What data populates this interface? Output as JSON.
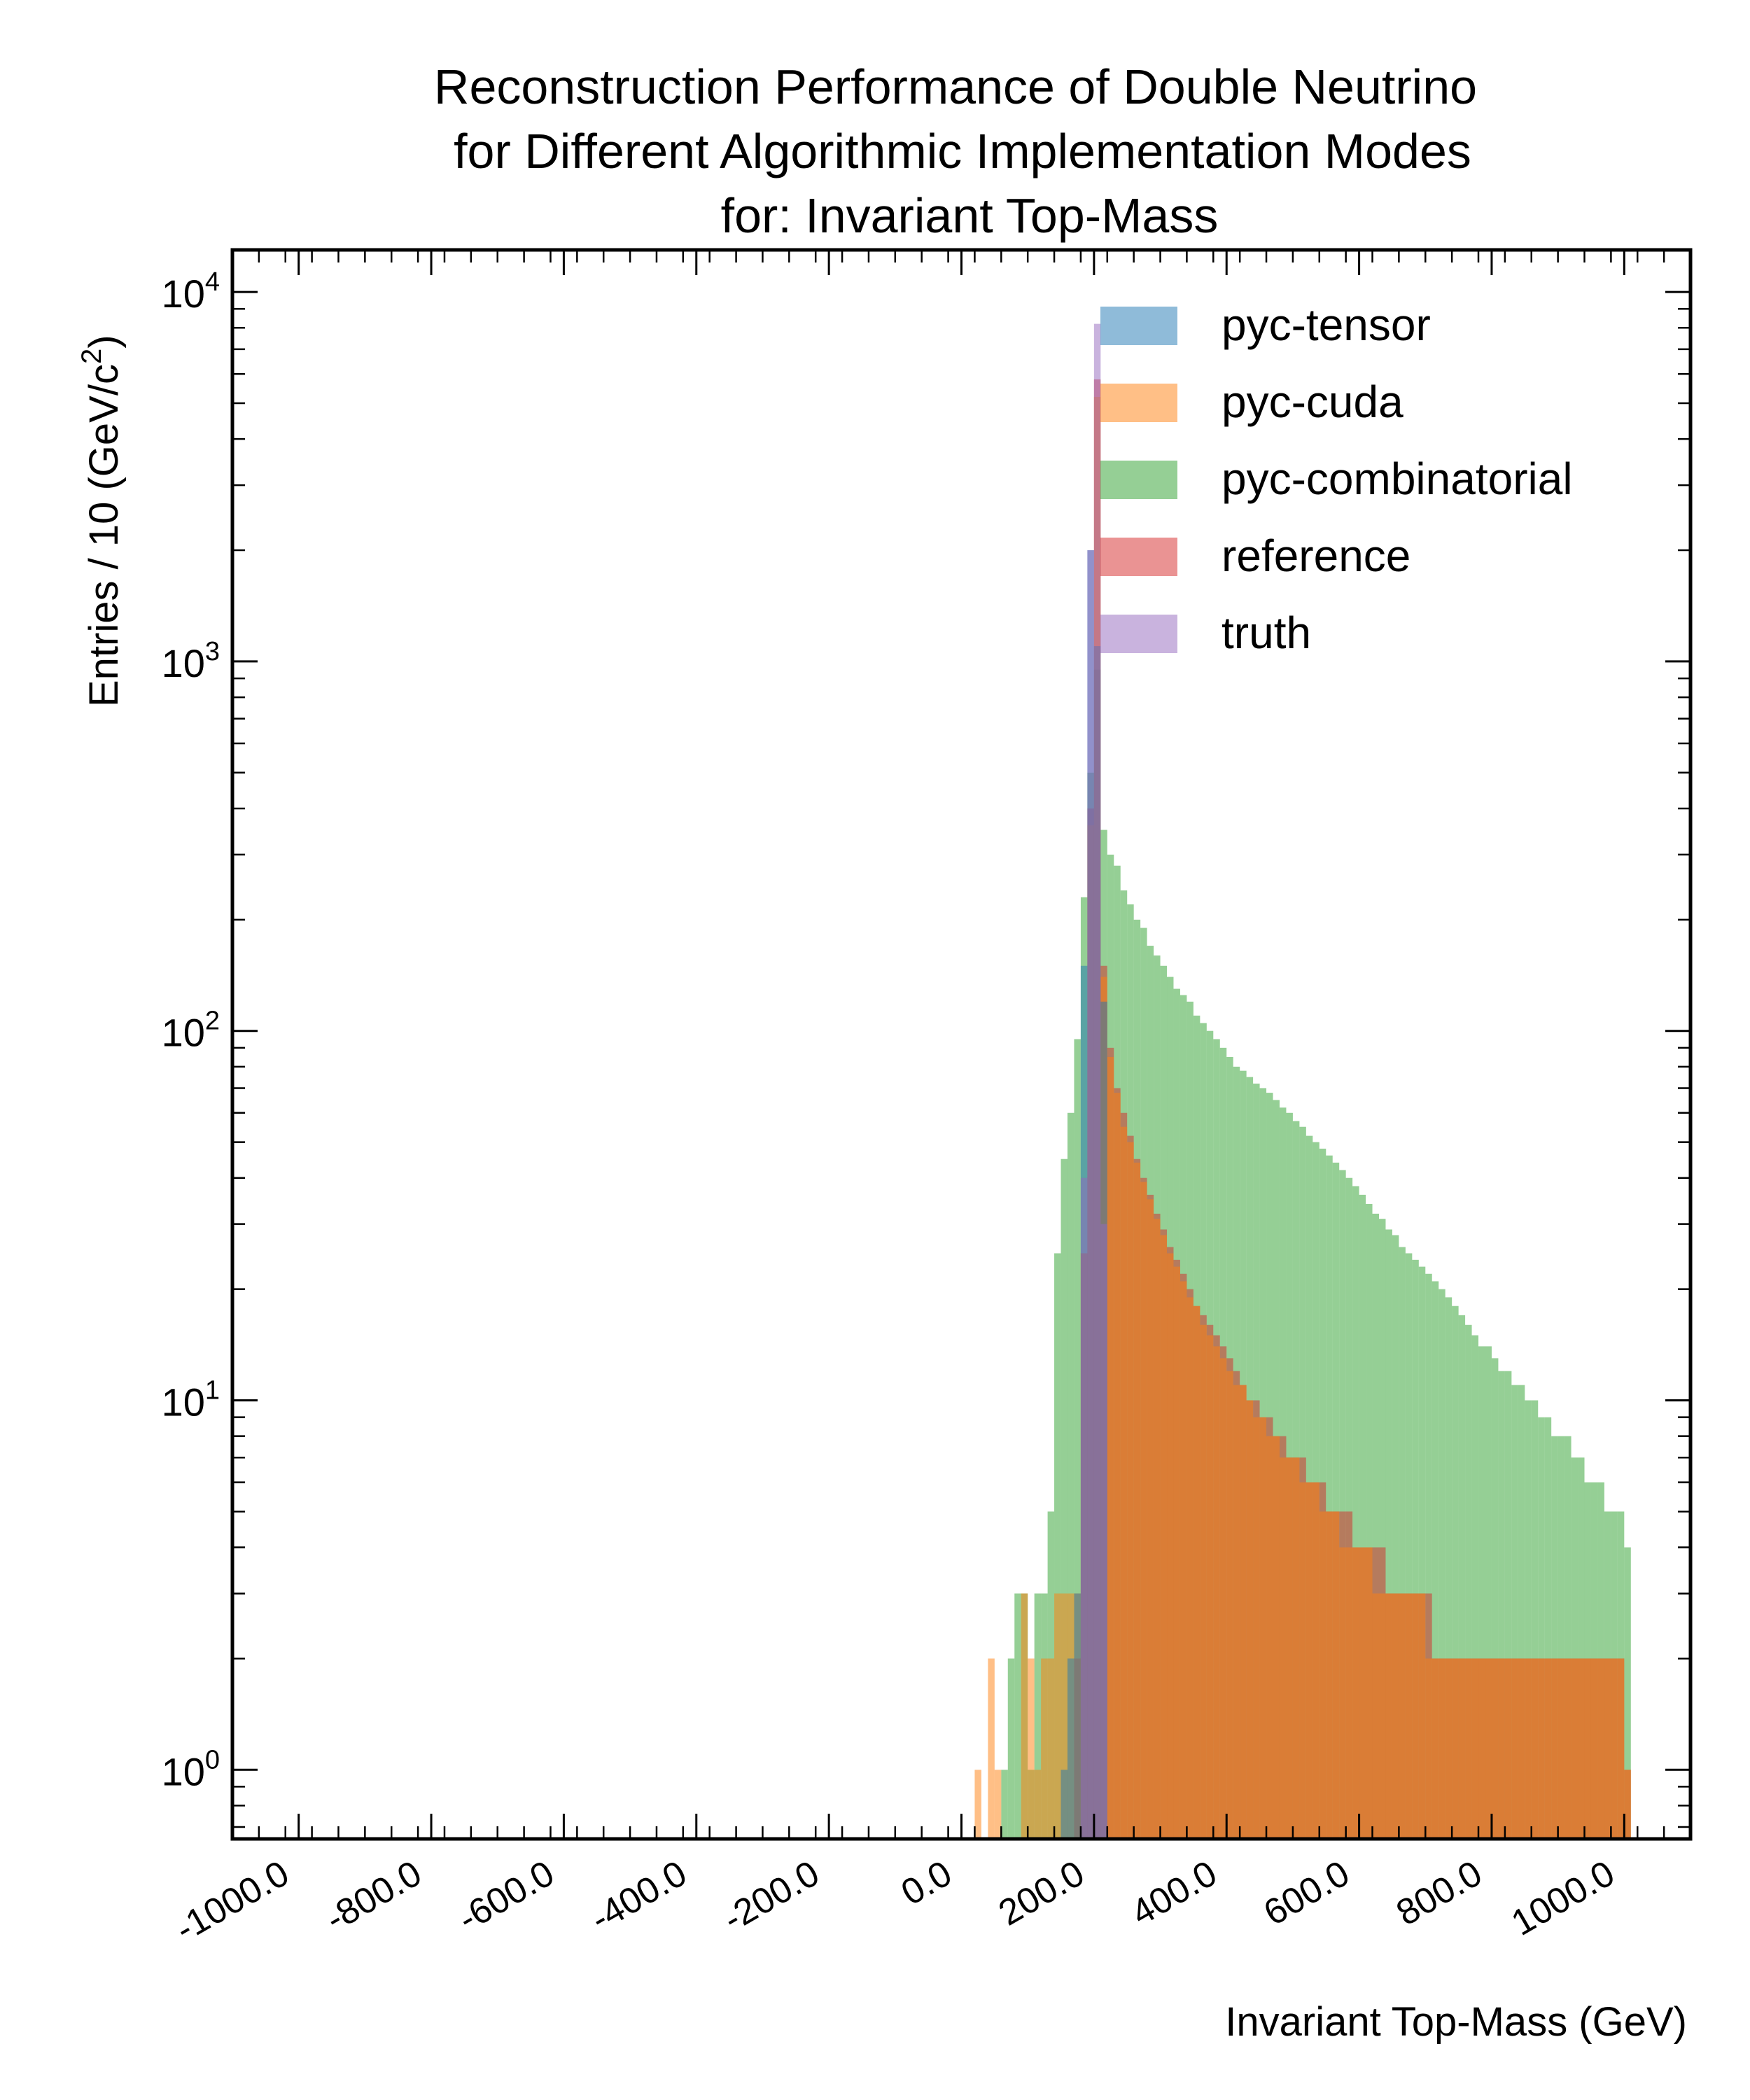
{
  "chart_data": {
    "type": "bar",
    "subtype": "overlaid step histogram",
    "title": [
      "Reconstruction Performance of Double Neutrino",
      "for Different Algorithmic Implementation Modes",
      "for: Invariant Top-Mass"
    ],
    "xlabel": "Invariant Top-Mass (GeV)",
    "ylabel": "Entries  / 10 (GeV/c",
    "ylabel_superscript": "2",
    "ylabel_suffix": ")",
    "x_ticks": [
      "-1000.0",
      "-800.0",
      "-600.0",
      "-400.0",
      "-200.0",
      "0.0",
      "200.0",
      "400.0",
      "600.0",
      "800.0",
      "1000.0"
    ],
    "x_tick_values": [
      -1000,
      -800,
      -600,
      -400,
      -200,
      0,
      200,
      400,
      600,
      800,
      1000
    ],
    "y_ticks": [
      {
        "base": "10",
        "exp": "0"
      },
      {
        "base": "10",
        "exp": "1"
      },
      {
        "base": "10",
        "exp": "2"
      },
      {
        "base": "10",
        "exp": "3"
      },
      {
        "base": "10",
        "exp": "4"
      }
    ],
    "xlim": [
      -1100,
      1100
    ],
    "ylim": [
      0.65,
      13000
    ],
    "yscale": "log",
    "bin_width": 10,
    "legend_position": "top-right",
    "series": [
      {
        "name": "pyc-combinatorial",
        "color": "#2ca02c",
        "bins": [
          [
            60,
            1
          ],
          [
            70,
            2
          ],
          [
            80,
            3
          ],
          [
            90,
            3
          ],
          [
            100,
            1
          ],
          [
            110,
            3
          ],
          [
            120,
            3
          ],
          [
            130,
            5
          ],
          [
            140,
            25
          ],
          [
            150,
            45
          ],
          [
            160,
            60
          ],
          [
            170,
            95
          ],
          [
            180,
            230
          ],
          [
            190,
            500
          ],
          [
            200,
            950
          ],
          [
            210,
            350
          ],
          [
            220,
            300
          ],
          [
            230,
            280
          ],
          [
            240,
            240
          ],
          [
            250,
            220
          ],
          [
            260,
            200
          ],
          [
            270,
            190
          ],
          [
            280,
            170
          ],
          [
            290,
            160
          ],
          [
            300,
            150
          ],
          [
            310,
            140
          ],
          [
            320,
            130
          ],
          [
            330,
            125
          ],
          [
            340,
            120
          ],
          [
            350,
            110
          ],
          [
            360,
            105
          ],
          [
            370,
            100
          ],
          [
            380,
            95
          ],
          [
            390,
            90
          ],
          [
            400,
            85
          ],
          [
            410,
            80
          ],
          [
            420,
            78
          ],
          [
            430,
            75
          ],
          [
            440,
            72
          ],
          [
            450,
            70
          ],
          [
            460,
            68
          ],
          [
            470,
            65
          ],
          [
            480,
            62
          ],
          [
            490,
            60
          ],
          [
            500,
            57
          ],
          [
            510,
            55
          ],
          [
            520,
            52
          ],
          [
            530,
            50
          ],
          [
            540,
            48
          ],
          [
            550,
            46
          ],
          [
            560,
            44
          ],
          [
            570,
            42
          ],
          [
            580,
            40
          ],
          [
            590,
            38
          ],
          [
            600,
            36
          ],
          [
            610,
            34
          ],
          [
            620,
            32
          ],
          [
            630,
            31
          ],
          [
            640,
            29
          ],
          [
            650,
            28
          ],
          [
            660,
            26
          ],
          [
            670,
            25
          ],
          [
            680,
            24
          ],
          [
            690,
            23
          ],
          [
            700,
            22
          ],
          [
            710,
            21
          ],
          [
            720,
            20
          ],
          [
            730,
            19
          ],
          [
            740,
            18
          ],
          [
            750,
            17
          ],
          [
            760,
            16
          ],
          [
            770,
            15
          ],
          [
            780,
            14
          ],
          [
            790,
            14
          ],
          [
            800,
            13
          ],
          [
            810,
            12
          ],
          [
            820,
            12
          ],
          [
            830,
            11
          ],
          [
            840,
            11
          ],
          [
            850,
            10
          ],
          [
            860,
            10
          ],
          [
            870,
            9
          ],
          [
            880,
            9
          ],
          [
            890,
            8
          ],
          [
            900,
            8
          ],
          [
            910,
            8
          ],
          [
            920,
            7
          ],
          [
            930,
            7
          ],
          [
            940,
            6
          ],
          [
            950,
            6
          ],
          [
            960,
            6
          ],
          [
            970,
            5
          ],
          [
            980,
            5
          ],
          [
            990,
            5
          ],
          [
            1000,
            4
          ]
        ]
      },
      {
        "name": "reference",
        "color": "#d62728",
        "bins": [
          [
            170,
            2
          ],
          [
            180,
            25
          ],
          [
            190,
            400
          ],
          [
            200,
            5800
          ],
          [
            210,
            150
          ],
          [
            220,
            90
          ],
          [
            230,
            70
          ],
          [
            240,
            60
          ],
          [
            250,
            52
          ],
          [
            260,
            45
          ],
          [
            270,
            40
          ],
          [
            280,
            36
          ],
          [
            290,
            32
          ],
          [
            300,
            29
          ],
          [
            310,
            26
          ],
          [
            320,
            24
          ],
          [
            330,
            22
          ],
          [
            340,
            20
          ],
          [
            350,
            18
          ],
          [
            360,
            17
          ],
          [
            370,
            16
          ],
          [
            380,
            15
          ],
          [
            390,
            14
          ],
          [
            400,
            13
          ],
          [
            410,
            12
          ],
          [
            420,
            11
          ],
          [
            430,
            10
          ],
          [
            440,
            10
          ],
          [
            450,
            9
          ],
          [
            460,
            9
          ],
          [
            470,
            8
          ],
          [
            480,
            8
          ],
          [
            490,
            7
          ],
          [
            500,
            7
          ],
          [
            510,
            7
          ],
          [
            520,
            6
          ],
          [
            530,
            6
          ],
          [
            540,
            6
          ],
          [
            550,
            5
          ],
          [
            560,
            5
          ],
          [
            570,
            5
          ],
          [
            580,
            5
          ],
          [
            590,
            4
          ],
          [
            600,
            4
          ],
          [
            610,
            4
          ],
          [
            620,
            4
          ],
          [
            630,
            4
          ],
          [
            640,
            3
          ],
          [
            650,
            3
          ],
          [
            660,
            3
          ],
          [
            670,
            3
          ],
          [
            680,
            3
          ],
          [
            690,
            3
          ],
          [
            700,
            3
          ],
          [
            710,
            2
          ],
          [
            720,
            2
          ],
          [
            730,
            2
          ],
          [
            740,
            2
          ],
          [
            750,
            2
          ],
          [
            760,
            2
          ],
          [
            770,
            2
          ],
          [
            780,
            2
          ],
          [
            790,
            2
          ],
          [
            800,
            2
          ],
          [
            810,
            2
          ],
          [
            820,
            2
          ],
          [
            830,
            2
          ],
          [
            840,
            2
          ],
          [
            850,
            2
          ],
          [
            860,
            2
          ],
          [
            870,
            2
          ],
          [
            880,
            2
          ],
          [
            890,
            2
          ],
          [
            900,
            2
          ],
          [
            910,
            2
          ],
          [
            920,
            2
          ],
          [
            930,
            2
          ],
          [
            940,
            2
          ],
          [
            950,
            2
          ],
          [
            960,
            2
          ],
          [
            970,
            2
          ],
          [
            980,
            2
          ],
          [
            990,
            2
          ],
          [
            1000,
            1
          ]
        ]
      },
      {
        "name": "pyc-cuda",
        "color": "#ff7f0e",
        "bins": [
          [
            20,
            1
          ],
          [
            40,
            2
          ],
          [
            50,
            1
          ],
          [
            90,
            3
          ],
          [
            100,
            2
          ],
          [
            110,
            1
          ],
          [
            120,
            2
          ],
          [
            130,
            2
          ],
          [
            140,
            3
          ],
          [
            150,
            3
          ],
          [
            160,
            3
          ],
          [
            170,
            3
          ],
          [
            180,
            25
          ],
          [
            190,
            360
          ],
          [
            200,
            5200
          ],
          [
            210,
            140
          ],
          [
            220,
            85
          ],
          [
            230,
            68
          ],
          [
            240,
            55
          ],
          [
            250,
            50
          ],
          [
            260,
            44
          ],
          [
            270,
            39
          ],
          [
            280,
            35
          ],
          [
            290,
            31
          ],
          [
            300,
            28
          ],
          [
            310,
            25
          ],
          [
            320,
            23
          ],
          [
            330,
            21
          ],
          [
            340,
            19
          ],
          [
            350,
            18
          ],
          [
            360,
            16
          ],
          [
            370,
            15
          ],
          [
            380,
            14
          ],
          [
            390,
            13
          ],
          [
            400,
            12
          ],
          [
            410,
            11
          ],
          [
            420,
            11
          ],
          [
            430,
            10
          ],
          [
            440,
            9
          ],
          [
            450,
            9
          ],
          [
            460,
            8
          ],
          [
            470,
            8
          ],
          [
            480,
            7
          ],
          [
            490,
            7
          ],
          [
            500,
            7
          ],
          [
            510,
            6
          ],
          [
            520,
            6
          ],
          [
            530,
            6
          ],
          [
            540,
            5
          ],
          [
            550,
            5
          ],
          [
            560,
            5
          ],
          [
            570,
            4
          ],
          [
            580,
            4
          ],
          [
            590,
            4
          ],
          [
            600,
            4
          ],
          [
            610,
            4
          ],
          [
            620,
            3
          ],
          [
            630,
            3
          ],
          [
            640,
            3
          ],
          [
            650,
            3
          ],
          [
            660,
            3
          ],
          [
            670,
            3
          ],
          [
            680,
            3
          ],
          [
            690,
            3
          ],
          [
            700,
            2
          ],
          [
            710,
            2
          ],
          [
            720,
            2
          ],
          [
            730,
            2
          ],
          [
            740,
            2
          ],
          [
            750,
            2
          ],
          [
            760,
            2
          ],
          [
            770,
            2
          ],
          [
            780,
            2
          ],
          [
            790,
            2
          ],
          [
            800,
            2
          ],
          [
            810,
            2
          ],
          [
            820,
            2
          ],
          [
            830,
            2
          ],
          [
            840,
            2
          ],
          [
            850,
            2
          ],
          [
            860,
            2
          ],
          [
            870,
            2
          ],
          [
            880,
            2
          ],
          [
            890,
            2
          ],
          [
            900,
            2
          ],
          [
            910,
            2
          ],
          [
            920,
            2
          ],
          [
            930,
            2
          ],
          [
            940,
            2
          ],
          [
            950,
            2
          ],
          [
            960,
            2
          ],
          [
            970,
            2
          ],
          [
            980,
            2
          ],
          [
            990,
            2
          ],
          [
            1000,
            1
          ]
        ]
      },
      {
        "name": "pyc-tensor",
        "color": "#1f77b4",
        "bins": [
          [
            150,
            1
          ],
          [
            160,
            2
          ],
          [
            170,
            3
          ],
          [
            180,
            150
          ],
          [
            190,
            2000
          ],
          [
            200,
            1100
          ],
          [
            210,
            120
          ]
        ]
      },
      {
        "name": "truth",
        "color": "#9467bd",
        "bins": [
          [
            180,
            40
          ],
          [
            190,
            2000
          ],
          [
            200,
            8200
          ],
          [
            210,
            30
          ]
        ]
      }
    ],
    "legend_order": [
      "pyc-tensor",
      "pyc-cuda",
      "pyc-combinatorial",
      "reference",
      "truth"
    ]
  }
}
